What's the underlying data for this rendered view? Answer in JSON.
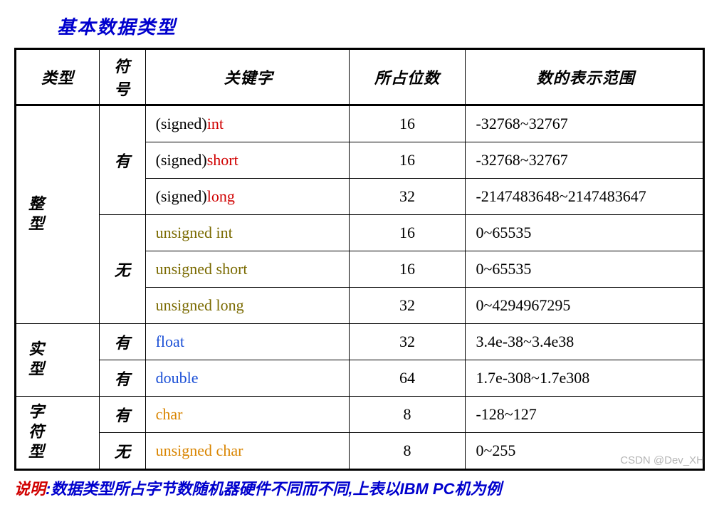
{
  "colors": {
    "title": "#0000cd",
    "signed_prefix": "#000000",
    "int_types": "#d00000",
    "unsigned_types": "#7a6a00",
    "float_types": "#1a4fd6",
    "char_types": "#d98500",
    "footer_label": "#d00000",
    "footer_body": "#0000cd",
    "border": "#000000"
  },
  "title": "基本数据类型",
  "headers": {
    "type": "类型",
    "sign": "符号",
    "keyword": "关键字",
    "bits": "所占位数",
    "range": "数的表示范围"
  },
  "groups": [
    {
      "type_label": "整型",
      "subgroups": [
        {
          "sign_label": "有",
          "rows": [
            {
              "kw_prefix": "(signed)",
              "kw_main": "int",
              "kw_color": "#d00000",
              "bits": "16",
              "range": "-32768~32767"
            },
            {
              "kw_prefix": "(signed)",
              "kw_main": "short",
              "kw_color": "#d00000",
              "bits": "16",
              "range": "-32768~32767"
            },
            {
              "kw_prefix": "(signed)",
              "kw_main": "long",
              "kw_color": "#d00000",
              "bits": "32",
              "range": "-2147483648~2147483647"
            }
          ]
        },
        {
          "sign_label": "无",
          "rows": [
            {
              "kw_prefix": "",
              "kw_main": "unsigned  int",
              "kw_color": "#7a6a00",
              "bits": "16",
              "range": "0~65535"
            },
            {
              "kw_prefix": "",
              "kw_main": "unsigned  short",
              "kw_color": "#7a6a00",
              "bits": "16",
              "range": "0~65535"
            },
            {
              "kw_prefix": "",
              "kw_main": "unsigned  long",
              "kw_color": "#7a6a00",
              "bits": "32",
              "range": "0~4294967295"
            }
          ]
        }
      ]
    },
    {
      "type_label": "实型",
      "subgroups": [
        {
          "sign_label": "有",
          "rows": [
            {
              "kw_prefix": "",
              "kw_main": "float",
              "kw_color": "#1a4fd6",
              "bits": "32",
              "range": "3.4e-38~3.4e38"
            }
          ]
        },
        {
          "sign_label": "有",
          "rows": [
            {
              "kw_prefix": "",
              "kw_main": "double",
              "kw_color": "#1a4fd6",
              "bits": "64",
              "range": "1.7e-308~1.7e308"
            }
          ]
        }
      ]
    },
    {
      "type_label": "字符型",
      "subgroups": [
        {
          "sign_label": "有",
          "rows": [
            {
              "kw_prefix": "",
              "kw_main": "char",
              "kw_color": "#d98500",
              "bits": "8",
              "range": "-128~127"
            }
          ]
        },
        {
          "sign_label": "无",
          "rows": [
            {
              "kw_prefix": "",
              "kw_main": "unsigned char",
              "kw_color": "#d98500",
              "bits": "8",
              "range": "0~255"
            }
          ]
        }
      ]
    }
  ],
  "footer": {
    "label": "说明",
    "body": ":数据类型所占字节数随机器硬件不同而不同,上表以IBM PC机为例"
  },
  "watermark": "CSDN @Dev_XH"
}
